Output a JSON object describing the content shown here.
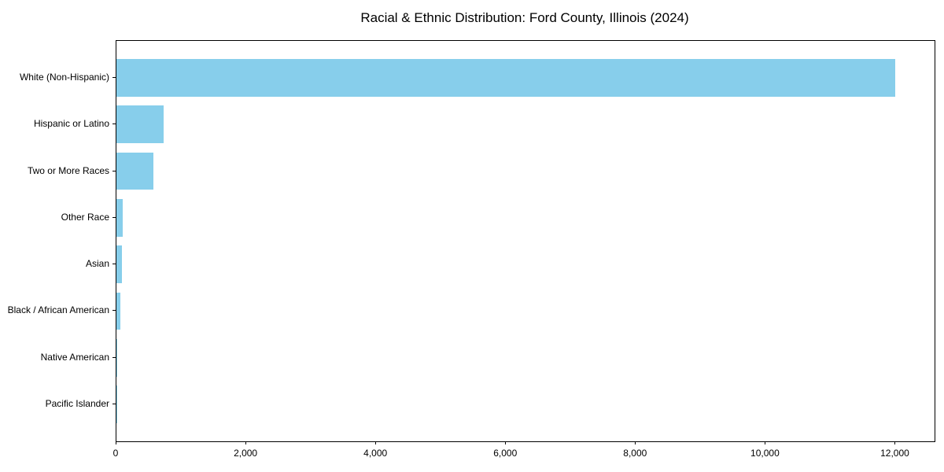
{
  "chart_data": {
    "type": "bar",
    "orientation": "horizontal",
    "title": "Racial & Ethnic Distribution: Ford County, Illinois (2024)",
    "categories": [
      "White (Non-Hispanic)",
      "Hispanic or Latino",
      "Two or More Races",
      "Other Race",
      "Asian",
      "Black / African American",
      "Native American",
      "Pacific Islander"
    ],
    "values": [
      11990,
      730,
      565,
      95,
      80,
      65,
      10,
      3
    ],
    "xlabel": "",
    "ylabel": "",
    "xlim": [
      0,
      12600
    ],
    "x_ticks": [
      0,
      2000,
      4000,
      6000,
      8000,
      10000,
      12000
    ],
    "x_tick_labels": [
      "0",
      "2,000",
      "4,000",
      "6,000",
      "8,000",
      "10,000",
      "12,000"
    ],
    "bar_color": "#87CEEB",
    "axis_color": "#000000",
    "background_color": "#ffffff",
    "grid": false,
    "legend_position": "none"
  }
}
